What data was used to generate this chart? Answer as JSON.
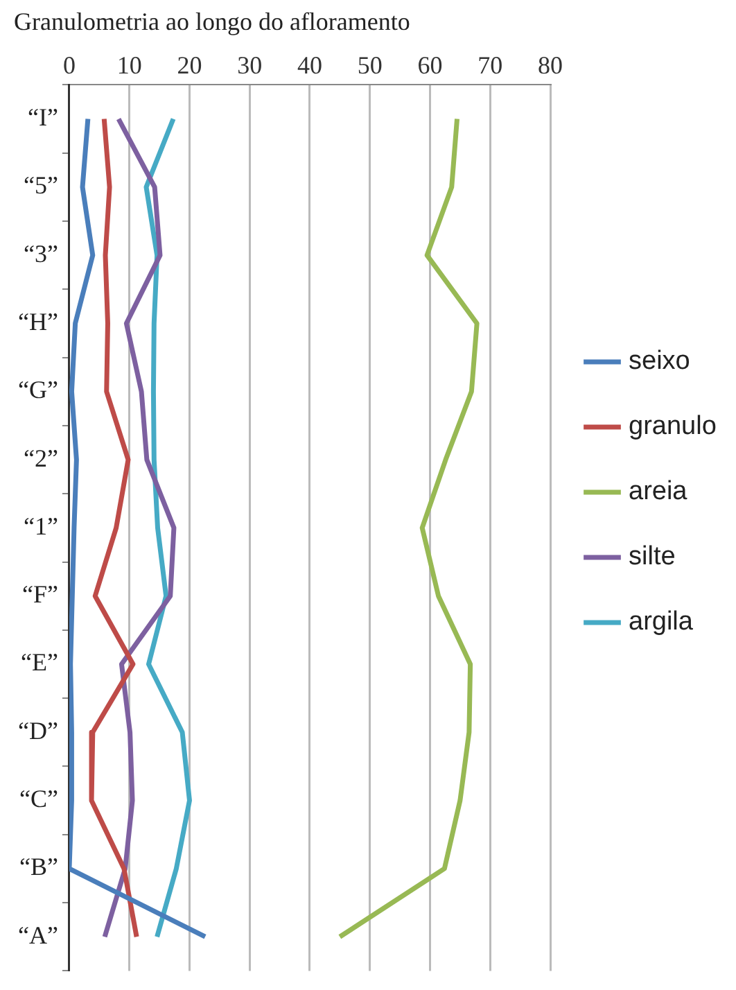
{
  "chart_data": {
    "type": "line",
    "orientation": "horizontal",
    "title": "Granulometria ao longo do afloramento",
    "categories": [
      "“I”",
      "“5”",
      "“3”",
      "“H”",
      "“G”",
      "“2”",
      "“1”",
      "“F”",
      "“E”",
      "“D”",
      "“C”",
      "“B”",
      "“A”"
    ],
    "series": [
      {
        "name": "seixo",
        "color": "#4a7ebb",
        "values": [
          3.1,
          2.2,
          3.9,
          1.0,
          0.4,
          1.2,
          0.8,
          0.5,
          0.2,
          0.4,
          0.4,
          0,
          22.6
        ]
      },
      {
        "name": "granulo",
        "color": "#be4b48",
        "values": [
          5.8,
          6.7,
          6.0,
          6.4,
          6.2,
          9.8,
          7.8,
          4.3,
          10.6,
          3.9,
          3.7,
          9.1,
          11.2
        ]
      },
      {
        "name": "areia",
        "color": "#98b954",
        "values": [
          64.5,
          63.6,
          59.5,
          67.8,
          66.9,
          62.6,
          58.7,
          61.4,
          66.7,
          66.5,
          65.0,
          62.4,
          45.0
        ]
      },
      {
        "name": "silte",
        "color": "#7d60a0",
        "values": [
          8.2,
          14.2,
          15.1,
          9.5,
          12.0,
          12.9,
          17.4,
          16.8,
          8.7,
          10.1,
          10.5,
          9.3,
          5.9
        ]
      },
      {
        "name": "argila",
        "color": "#46aac5",
        "values": [
          17.3,
          12.8,
          14.6,
          14.1,
          14.0,
          14.1,
          14.7,
          16.1,
          13.2,
          18.8,
          20.0,
          17.8,
          14.6
        ]
      }
    ],
    "xlim": [
      0,
      80
    ],
    "xticks": [
      0,
      10,
      20,
      30,
      40,
      50,
      60,
      70,
      80
    ],
    "grid": "x",
    "legend": "right",
    "marker": "none",
    "line_style": "solid"
  }
}
